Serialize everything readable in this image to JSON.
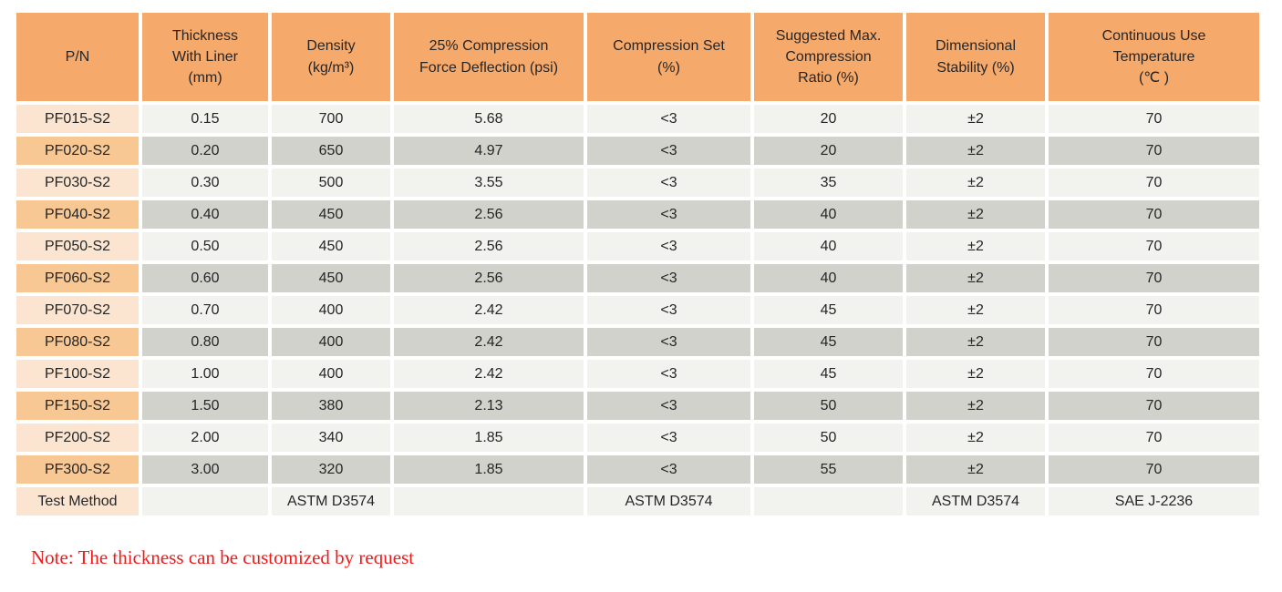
{
  "colors": {
    "background": "#ffffff",
    "header_bg": "#f5a96b",
    "pn_odd_bg": "#fbe5d1",
    "pn_even_bg": "#f7c794",
    "cell_odd_bg": "#f2f2ee",
    "cell_even_bg": "#d2d2cc",
    "text": "#262626",
    "note_red": "#ec1b1b"
  },
  "table": {
    "columns": [
      {
        "label": [
          "P/N"
        ]
      },
      {
        "label": [
          "Thickness",
          "With Liner",
          "(mm)"
        ]
      },
      {
        "label": [
          "Density",
          "(kg/m³)"
        ]
      },
      {
        "label": [
          "25% Compression",
          "Force Deflection (psi)"
        ]
      },
      {
        "label": [
          "Compression Set",
          "(%)"
        ]
      },
      {
        "label": [
          "Suggested Max.",
          "Compression",
          "Ratio (%)"
        ]
      },
      {
        "label": [
          "Dimensional",
          "Stability (%)"
        ]
      },
      {
        "label": [
          "Continuous Use",
          "Temperature",
          "(℃ )"
        ]
      }
    ],
    "rows": [
      {
        "cells": [
          "PF015-S2",
          "0.15",
          "700",
          "5.68",
          "<3",
          "20",
          "±2",
          "70"
        ]
      },
      {
        "cells": [
          "PF020-S2",
          "0.20",
          "650",
          "4.97",
          "<3",
          "20",
          "±2",
          "70"
        ]
      },
      {
        "cells": [
          "PF030-S2",
          "0.30",
          "500",
          "3.55",
          "<3",
          "35",
          "±2",
          "70"
        ]
      },
      {
        "cells": [
          "PF040-S2",
          "0.40",
          "450",
          "2.56",
          "<3",
          "40",
          "±2",
          "70"
        ]
      },
      {
        "cells": [
          "PF050-S2",
          "0.50",
          "450",
          "2.56",
          "<3",
          "40",
          "±2",
          "70"
        ]
      },
      {
        "cells": [
          "PF060-S2",
          "0.60",
          "450",
          "2.56",
          "<3",
          "40",
          "±2",
          "70"
        ]
      },
      {
        "cells": [
          "PF070-S2",
          "0.70",
          "400",
          "2.42",
          "<3",
          "45",
          "±2",
          "70"
        ]
      },
      {
        "cells": [
          "PF080-S2",
          "0.80",
          "400",
          "2.42",
          "<3",
          "45",
          "±2",
          "70"
        ]
      },
      {
        "cells": [
          "PF100-S2",
          "1.00",
          "400",
          "2.42",
          "<3",
          "45",
          "±2",
          "70"
        ]
      },
      {
        "cells": [
          "PF150-S2",
          "1.50",
          "380",
          "2.13",
          "<3",
          "50",
          "±2",
          "70"
        ]
      },
      {
        "cells": [
          "PF200-S2",
          "2.00",
          "340",
          "1.85",
          "<3",
          "50",
          "±2",
          "70"
        ]
      },
      {
        "cells": [
          "PF300-S2",
          "3.00",
          "320",
          "1.85",
          "<3",
          "55",
          "±2",
          "70"
        ]
      },
      {
        "cells": [
          "Test Method",
          "",
          "ASTM D3574",
          "",
          "ASTM D3574",
          "",
          "ASTM D3574",
          "SAE J-2236"
        ]
      }
    ]
  },
  "note": {
    "text": "Note: The thickness can be customized by request"
  }
}
